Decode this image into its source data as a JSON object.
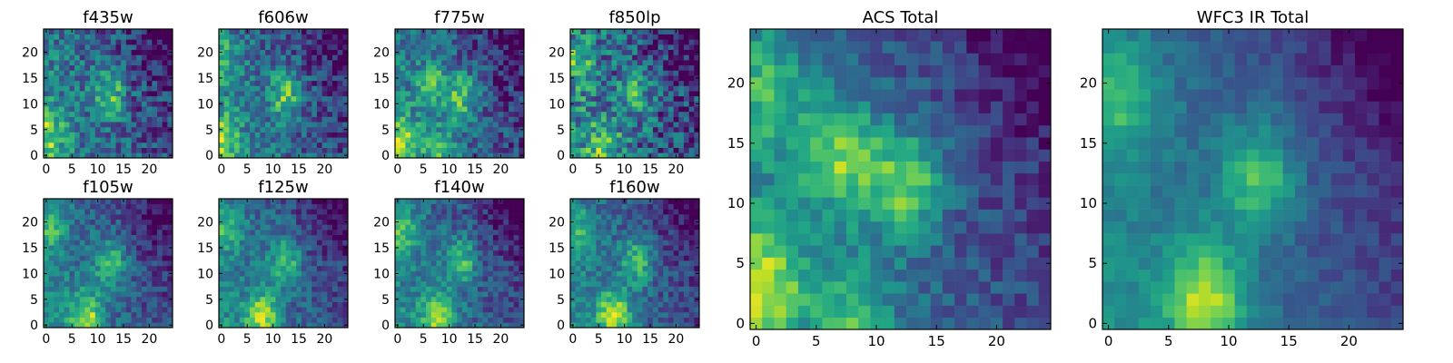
{
  "chart_data": [
    {
      "type": "heatmap",
      "title": "f435w",
      "x_ticks": [
        "0",
        "5",
        "10",
        "15",
        "20"
      ],
      "y_ticks": [
        "0",
        "5",
        "10",
        "15",
        "20"
      ],
      "xlim": [
        0,
        25
      ],
      "ylim": [
        0,
        25
      ],
      "grid": false,
      "colormap": "viridis",
      "source_hotspots": [
        {
          "x": 12.5,
          "y": 12,
          "intensity": 0.75
        },
        {
          "x": 0,
          "y": 4,
          "intensity": 0.65
        }
      ],
      "noise": 0.45
    },
    {
      "type": "heatmap",
      "title": "f606w",
      "x_ticks": [
        "0",
        "5",
        "10",
        "15",
        "20"
      ],
      "y_ticks": [
        "0",
        "5",
        "10",
        "15",
        "20"
      ],
      "xlim": [
        0,
        25
      ],
      "ylim": [
        0,
        25
      ],
      "grid": false,
      "colormap": "viridis",
      "source_hotspots": [
        {
          "x": 12.5,
          "y": 12,
          "intensity": 0.8
        },
        {
          "x": 0,
          "y": 3.5,
          "intensity": 0.7
        },
        {
          "x": 1,
          "y": 19,
          "intensity": 0.4
        }
      ],
      "noise": 0.4
    },
    {
      "type": "heatmap",
      "title": "f775w",
      "x_ticks": [
        "0",
        "5",
        "10",
        "15",
        "20"
      ],
      "y_ticks": [
        "0",
        "5",
        "10",
        "15",
        "20"
      ],
      "xlim": [
        0,
        25
      ],
      "ylim": [
        0,
        25
      ],
      "grid": false,
      "colormap": "viridis",
      "source_hotspots": [
        {
          "x": 12.5,
          "y": 11.5,
          "intensity": 0.75
        },
        {
          "x": 7,
          "y": 14,
          "intensity": 0.6
        },
        {
          "x": 0.5,
          "y": 3,
          "intensity": 0.7
        },
        {
          "x": 8,
          "y": 1,
          "intensity": 0.5
        }
      ],
      "noise": 0.4
    },
    {
      "type": "heatmap",
      "title": "f850lp",
      "x_ticks": [
        "0",
        "5",
        "10",
        "15",
        "20"
      ],
      "y_ticks": [
        "0",
        "5",
        "10",
        "15",
        "20"
      ],
      "xlim": [
        0,
        25
      ],
      "ylim": [
        0,
        25
      ],
      "grid": false,
      "colormap": "viridis",
      "source_hotspots": [
        {
          "x": 12.5,
          "y": 11.5,
          "intensity": 0.6
        },
        {
          "x": 6,
          "y": 2,
          "intensity": 0.6
        },
        {
          "x": 1,
          "y": 18,
          "intensity": 0.55
        }
      ],
      "noise": 0.55
    },
    {
      "type": "heatmap",
      "title": "f105w",
      "x_ticks": [
        "0",
        "5",
        "10",
        "15",
        "20"
      ],
      "y_ticks": [
        "0",
        "5",
        "10",
        "15",
        "20"
      ],
      "xlim": [
        0,
        25
      ],
      "ylim": [
        0,
        25
      ],
      "grid": false,
      "colormap": "viridis",
      "source_hotspots": [
        {
          "x": 12.5,
          "y": 12,
          "intensity": 0.7
        },
        {
          "x": 8,
          "y": 1.5,
          "intensity": 0.9
        },
        {
          "x": 1,
          "y": 19,
          "intensity": 0.5
        }
      ],
      "noise": 0.3
    },
    {
      "type": "heatmap",
      "title": "f125w",
      "x_ticks": [
        "0",
        "5",
        "10",
        "15",
        "20"
      ],
      "y_ticks": [
        "0",
        "5",
        "10",
        "15",
        "20"
      ],
      "xlim": [
        0,
        25
      ],
      "ylim": [
        0,
        25
      ],
      "grid": false,
      "colormap": "viridis",
      "source_hotspots": [
        {
          "x": 12.5,
          "y": 12.5,
          "intensity": 0.7
        },
        {
          "x": 8,
          "y": 2,
          "intensity": 0.9
        },
        {
          "x": 1,
          "y": 19,
          "intensity": 0.5
        }
      ],
      "noise": 0.3
    },
    {
      "type": "heatmap",
      "title": "f140w",
      "x_ticks": [
        "0",
        "5",
        "10",
        "15",
        "20"
      ],
      "y_ticks": [
        "0",
        "5",
        "10",
        "15",
        "20"
      ],
      "xlim": [
        0,
        25
      ],
      "ylim": [
        0,
        25
      ],
      "grid": false,
      "colormap": "viridis",
      "source_hotspots": [
        {
          "x": 12.5,
          "y": 12.5,
          "intensity": 0.7
        },
        {
          "x": 8,
          "y": 2,
          "intensity": 0.9
        },
        {
          "x": 1,
          "y": 18,
          "intensity": 0.55
        }
      ],
      "noise": 0.3
    },
    {
      "type": "heatmap",
      "title": "f160w",
      "x_ticks": [
        "0",
        "5",
        "10",
        "15",
        "20"
      ],
      "y_ticks": [
        "0",
        "5",
        "10",
        "15",
        "20"
      ],
      "xlim": [
        0,
        25
      ],
      "ylim": [
        0,
        25
      ],
      "grid": false,
      "colormap": "viridis",
      "source_hotspots": [
        {
          "x": 12.5,
          "y": 12.5,
          "intensity": 0.7
        },
        {
          "x": 8,
          "y": 2,
          "intensity": 0.95
        },
        {
          "x": 1,
          "y": 18,
          "intensity": 0.5
        }
      ],
      "noise": 0.3
    },
    {
      "type": "heatmap",
      "title": "ACS Total",
      "x_ticks": [
        "0",
        "5",
        "10",
        "15",
        "20"
      ],
      "y_ticks": [
        "0",
        "5",
        "10",
        "15",
        "20"
      ],
      "xlim": [
        0,
        25
      ],
      "ylim": [
        0,
        25
      ],
      "grid": false,
      "colormap": "viridis",
      "source_hotspots": [
        {
          "x": 12.5,
          "y": 11.5,
          "intensity": 0.85
        },
        {
          "x": 0.5,
          "y": 3.5,
          "intensity": 0.85
        },
        {
          "x": 7,
          "y": 14,
          "intensity": 0.8
        },
        {
          "x": 1,
          "y": 19,
          "intensity": 0.5
        },
        {
          "x": 8,
          "y": 0.5,
          "intensity": 0.5
        }
      ],
      "noise": 0.25
    },
    {
      "type": "heatmap",
      "title": "WFC3 IR Total",
      "x_ticks": [
        "0",
        "5",
        "10",
        "15",
        "20"
      ],
      "y_ticks": [
        "0",
        "5",
        "10",
        "15",
        "20"
      ],
      "xlim": [
        0,
        25
      ],
      "ylim": [
        0,
        25
      ],
      "grid": false,
      "colormap": "viridis",
      "source_hotspots": [
        {
          "x": 12.5,
          "y": 12,
          "intensity": 0.75
        },
        {
          "x": 8,
          "y": 2,
          "intensity": 0.95
        },
        {
          "x": 1,
          "y": 19,
          "intensity": 0.55
        }
      ],
      "noise": 0.15
    }
  ]
}
